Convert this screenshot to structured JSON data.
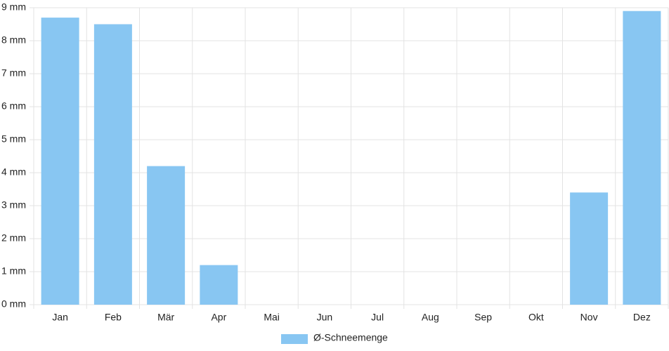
{
  "chart_data": {
    "type": "bar",
    "categories": [
      "Jan",
      "Feb",
      "Mär",
      "Apr",
      "Mai",
      "Jun",
      "Jul",
      "Aug",
      "Sep",
      "Okt",
      "Nov",
      "Dez"
    ],
    "series": [
      {
        "name": "Ø-Schneemenge",
        "color": "#88c6f2",
        "values": [
          8.7,
          8.5,
          4.2,
          1.2,
          0,
          0,
          0,
          0,
          0,
          0,
          3.4,
          8.9
        ]
      }
    ],
    "ylim": [
      0,
      9
    ],
    "yticks": [
      {
        "value": 0,
        "label": "0 mm"
      },
      {
        "value": 1,
        "label": "1 mm"
      },
      {
        "value": 2,
        "label": "2 mm"
      },
      {
        "value": 3,
        "label": "3 mm"
      },
      {
        "value": 4,
        "label": "4 mm"
      },
      {
        "value": 5,
        "label": "5 mm"
      },
      {
        "value": 6,
        "label": "6 mm"
      },
      {
        "value": 7,
        "label": "7 mm"
      },
      {
        "value": 8,
        "label": "8 mm"
      },
      {
        "value": 9,
        "label": "9 mm"
      }
    ],
    "grid": true,
    "legend": "bottom"
  }
}
